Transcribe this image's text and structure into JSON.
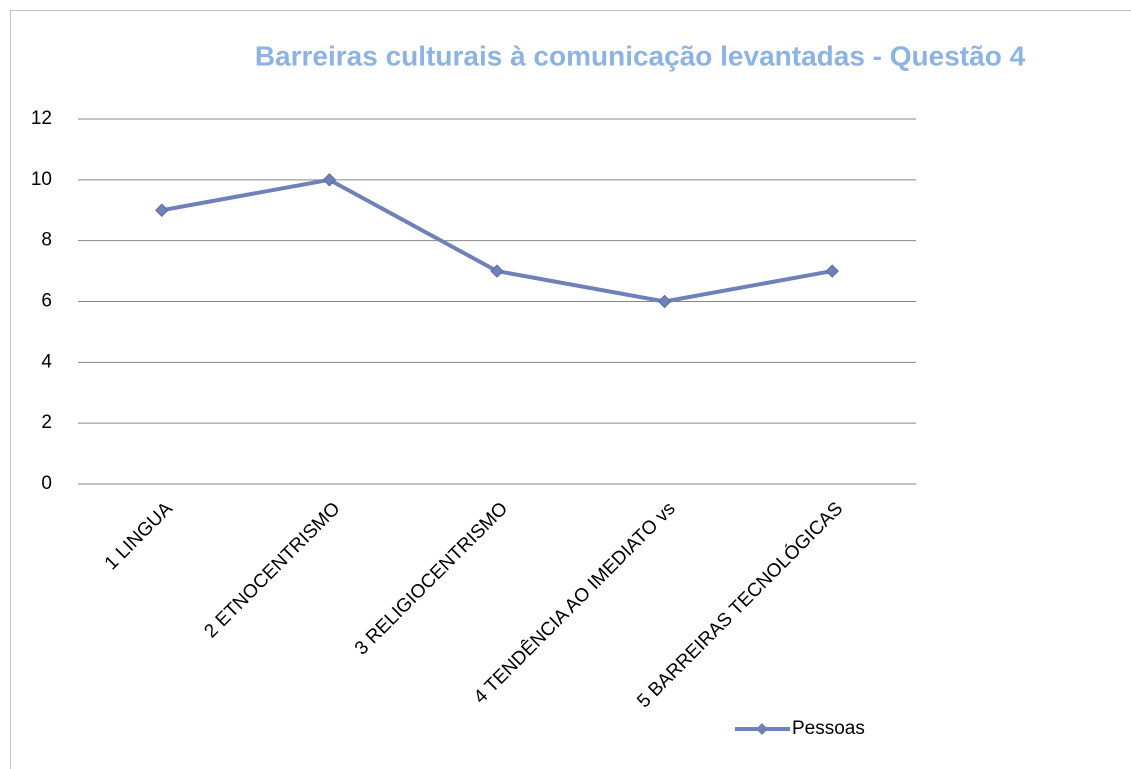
{
  "chart_data": {
    "type": "line",
    "title": "Barreiras culturais à comunicação levantadas - Questão 4",
    "categories": [
      "1 LINGUA",
      "2 ETNOCENTRISMO",
      "3 RELIGIOCENTRISMO",
      "4 TENDÊNCIA AO IMEDIATO vs",
      "5 BARREIRAS TECNOLÓGICAS"
    ],
    "series": [
      {
        "name": "Pessoas",
        "color": "#7080b8",
        "values": [
          9,
          10,
          7,
          6,
          7
        ]
      }
    ],
    "ylim": [
      0,
      12
    ],
    "yticks": [
      0,
      2,
      4,
      6,
      8,
      10,
      12
    ],
    "grid": true,
    "legend": "bottom-right"
  }
}
